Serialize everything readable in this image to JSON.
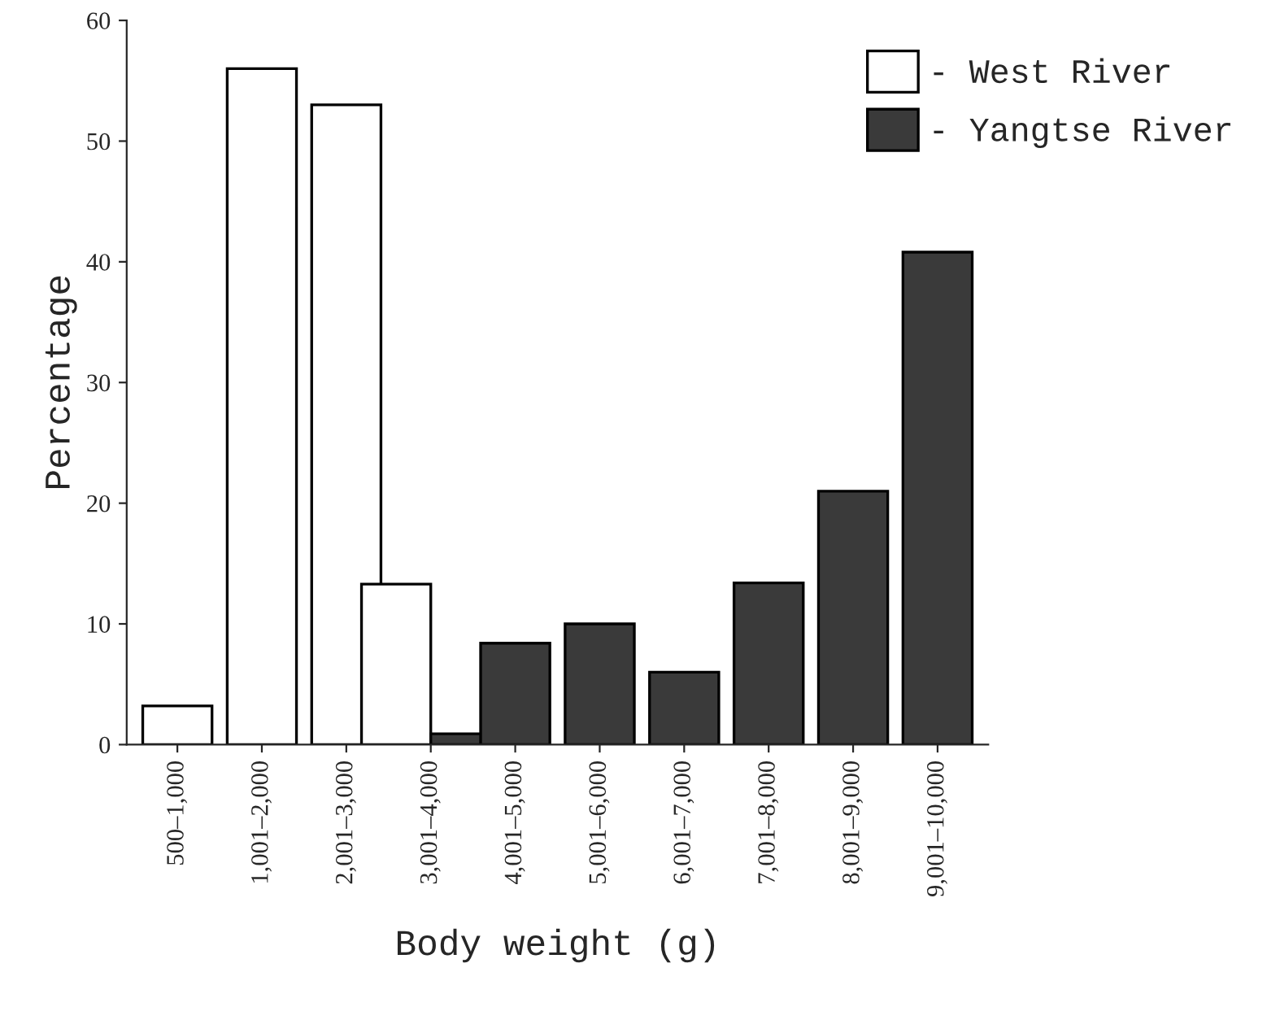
{
  "chart_data": {
    "type": "bar",
    "xlabel": "Body weight (g)",
    "ylabel": "Percentage",
    "categories": [
      "500–1,000",
      "1,001–2,000",
      "2,001–3,000",
      "3,001–4,000",
      "4,001–5,000",
      "5,001–6,000",
      "6,001–7,000",
      "7,001–8,000",
      "8,001–9,000",
      "9,001–10,000"
    ],
    "series": [
      {
        "name": "- West River",
        "color": "#ffffff",
        "values": [
          3.2,
          56,
          53,
          13.3,
          null,
          null,
          null,
          null,
          null,
          null
        ]
      },
      {
        "name": "- Yangtse River",
        "color": "#3a3a3a",
        "values": [
          null,
          null,
          null,
          0.9,
          8.4,
          10,
          6.0,
          13.4,
          21.0,
          40.8
        ]
      }
    ],
    "ylim": [
      0,
      60
    ],
    "yticks": [
      0,
      10,
      20,
      30,
      40,
      50,
      60
    ],
    "grid": false,
    "legend": "top right"
  }
}
